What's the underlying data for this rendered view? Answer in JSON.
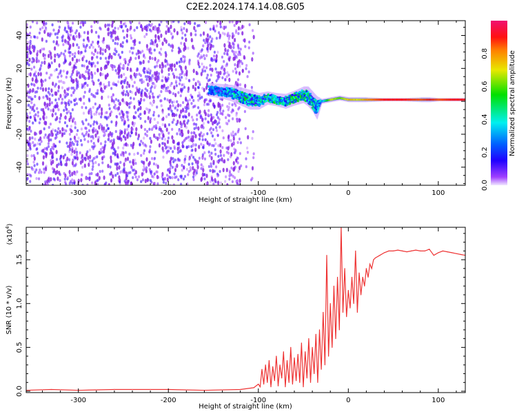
{
  "title": "C2E2.2024.174.14.08.G05",
  "chart_data": [
    {
      "type": "heatmap",
      "xlabel": "Height of straight line (km)",
      "ylabel": "Frequency (Hz)",
      "xlim": [
        -358,
        130
      ],
      "ylim": [
        -51,
        49
      ],
      "xticks": [
        -300,
        -200,
        -100,
        0,
        100
      ],
      "yticks": [
        -40,
        -20,
        0,
        20,
        40
      ],
      "colorbar": {
        "label": "Normalized spectral amplitude",
        "range": [
          0,
          1
        ],
        "ticks": [
          "0.0",
          "0.2",
          "0.4",
          "0.6",
          "0.8"
        ]
      },
      "noise_region": {
        "x_range": [
          -358,
          -120
        ],
        "freq_range": [
          -51,
          49
        ],
        "amplitude": 0.12
      },
      "signal_track": {
        "height": [
          -155,
          -140,
          -130,
          -120,
          -110,
          -100,
          -90,
          -80,
          -70,
          -60,
          -50,
          -45,
          -40,
          -35,
          -30,
          -20,
          -10,
          0,
          10,
          20,
          40,
          60,
          80,
          90,
          100,
          115,
          130
        ],
        "freq_center": [
          7,
          6,
          5,
          3,
          1,
          0,
          2,
          1,
          0,
          2,
          4,
          3,
          0,
          -4,
          0,
          1,
          2,
          1,
          1,
          1,
          1,
          1,
          1,
          1,
          1,
          1,
          1
        ],
        "freq_spread": [
          8,
          9,
          10,
          11,
          12,
          10,
          8,
          8,
          9,
          9,
          10,
          12,
          12,
          14,
          3,
          3,
          3,
          3,
          3,
          3,
          2,
          2,
          3,
          3,
          2,
          2,
          2
        ],
        "amplitude": [
          0.2,
          0.25,
          0.35,
          0.4,
          0.4,
          0.35,
          0.45,
          0.45,
          0.4,
          0.45,
          0.4,
          0.45,
          0.4,
          0.3,
          0.3,
          0.7,
          0.6,
          0.75,
          0.7,
          0.8,
          0.9,
          0.9,
          0.85,
          0.9,
          0.85,
          0.9,
          0.9
        ]
      }
    },
    {
      "type": "line",
      "xlabel": "Height of straight line (km)",
      "ylabel": "SNR (10 * v/v)",
      "yscale_label": "(x10",
      "yscale_exp": "4",
      "xlim": [
        -358,
        130
      ],
      "ylim": [
        0,
        1.87
      ],
      "xticks": [
        -300,
        -200,
        -100,
        0,
        100
      ],
      "yticks": [
        "0.0",
        "0.5",
        "1.0",
        "1.5"
      ],
      "color": "#ee3333",
      "x": [
        -358,
        -330,
        -300,
        -260,
        -200,
        -160,
        -120,
        -105,
        -100,
        -98,
        -96,
        -94,
        -92,
        -90,
        -88,
        -86,
        -84,
        -82,
        -80,
        -78,
        -76,
        -74,
        -72,
        -70,
        -68,
        -66,
        -64,
        -62,
        -60,
        -58,
        -56,
        -54,
        -52,
        -50,
        -48,
        -46,
        -44,
        -42,
        -40,
        -38,
        -36,
        -34,
        -32,
        -30,
        -28,
        -26,
        -24,
        -22,
        -20,
        -18,
        -16,
        -14,
        -12,
        -10,
        -8,
        -6,
        -4,
        -2,
        0,
        2,
        4,
        6,
        8,
        10,
        12,
        14,
        16,
        18,
        20,
        22,
        24,
        26,
        28,
        30,
        35,
        40,
        45,
        50,
        55,
        60,
        65,
        70,
        75,
        80,
        85,
        90,
        95,
        100,
        105,
        110,
        115,
        120,
        125,
        130
      ],
      "y": [
        0.01,
        0.02,
        0.01,
        0.02,
        0.02,
        0.01,
        0.02,
        0.04,
        0.08,
        0.05,
        0.25,
        0.08,
        0.3,
        0.1,
        0.35,
        0.05,
        0.28,
        0.12,
        0.4,
        0.06,
        0.3,
        0.15,
        0.45,
        0.05,
        0.35,
        0.1,
        0.5,
        0.08,
        0.38,
        0.12,
        0.42,
        0.1,
        0.55,
        0.05,
        0.45,
        0.15,
        0.6,
        0.1,
        0.5,
        0.2,
        0.65,
        0.1,
        0.7,
        0.25,
        0.9,
        0.3,
        1.55,
        0.4,
        1.0,
        0.5,
        1.2,
        0.6,
        1.3,
        0.7,
        1.87,
        0.9,
        1.4,
        0.85,
        1.15,
        0.95,
        1.3,
        1.0,
        1.6,
        0.9,
        1.35,
        1.1,
        1.3,
        1.2,
        1.4,
        1.3,
        1.45,
        1.4,
        1.5,
        1.52,
        1.55,
        1.58,
        1.6,
        1.6,
        1.61,
        1.6,
        1.59,
        1.6,
        1.61,
        1.6,
        1.6,
        1.62,
        1.55,
        1.58,
        1.6,
        1.59,
        1.58,
        1.57,
        1.56,
        1.55
      ]
    }
  ]
}
